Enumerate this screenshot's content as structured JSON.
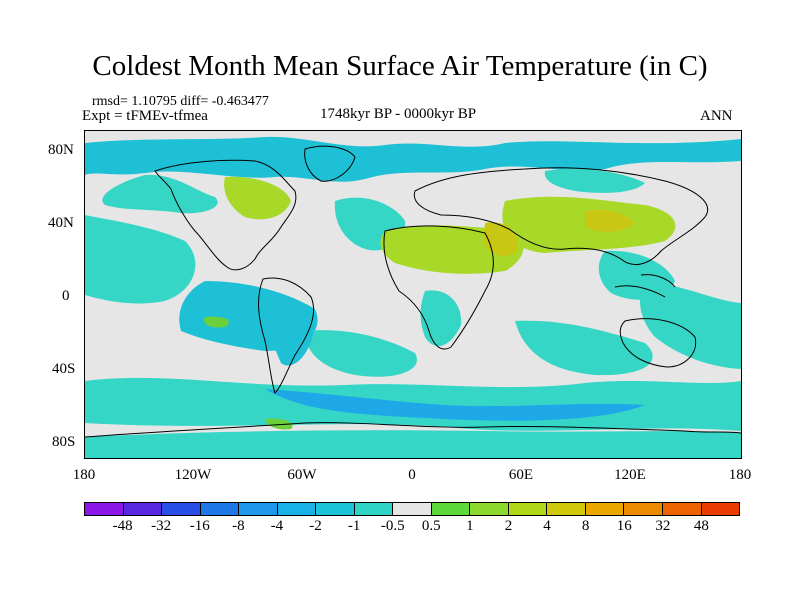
{
  "title": "Coldest Month Mean Surface Air Temperature (in C)",
  "stats": "rmsd= 1.10795 diff= -0.463477",
  "experiment": "Expt = tFMEv-tfmea",
  "period": "1748kyr BP - 0000kyr BP",
  "season": "ANN",
  "lat_labels": [
    "80N",
    "40N",
    "0",
    "40S",
    "80S"
  ],
  "lon_labels": [
    "180",
    "120W",
    "60W",
    "0",
    "60E",
    "120E",
    "180"
  ],
  "colors": {
    "neutral": "#e6e6e6",
    "cyan_light": "#35d6c6",
    "cyan": "#1ec0d6",
    "blue_light": "#1ea8e8",
    "green_light": "#a8d828",
    "green": "#6cd03c",
    "olive": "#c8c814",
    "orange": "#e8a800"
  },
  "colorbar": {
    "colors": [
      "#8a17e8",
      "#5a28e0",
      "#2a4ee8",
      "#1e78e8",
      "#1e98ea",
      "#1ab2e6",
      "#1cc4da",
      "#30d4c4",
      "#e6e6e6",
      "#5ed83a",
      "#8cd82c",
      "#b0d818",
      "#d0c80a",
      "#e8a800",
      "#ec8a00",
      "#ec6400",
      "#e83c00"
    ],
    "labels": [
      "-48",
      "-32",
      "-16",
      "-8",
      "-4",
      "-2",
      "-1",
      "-0.5",
      "0.5",
      "1",
      "2",
      "4",
      "8",
      "16",
      "32",
      "48"
    ]
  }
}
